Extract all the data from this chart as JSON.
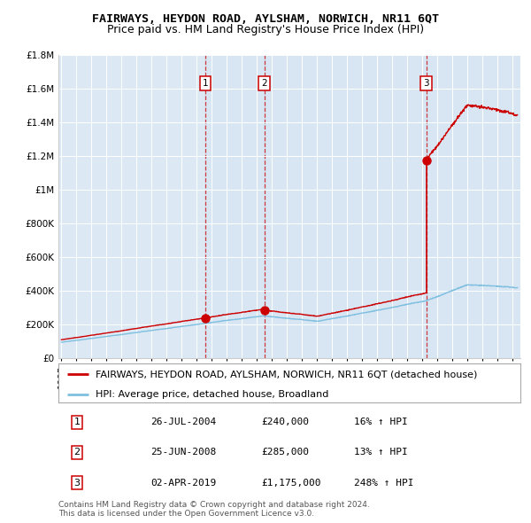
{
  "title": "FAIRWAYS, HEYDON ROAD, AYLSHAM, NORWICH, NR11 6QT",
  "subtitle": "Price paid vs. HM Land Registry's House Price Index (HPI)",
  "background_color": "#ffffff",
  "plot_bg_color": "#dce9f5",
  "grid_color": "#ffffff",
  "ylim": [
    0,
    1800000
  ],
  "xlim_start": 1994.8,
  "xlim_end": 2025.5,
  "yticks": [
    0,
    200000,
    400000,
    600000,
    800000,
    1000000,
    1200000,
    1400000,
    1600000,
    1800000
  ],
  "ytick_labels": [
    "£0",
    "£200K",
    "£400K",
    "£600K",
    "£800K",
    "£1M",
    "£1.2M",
    "£1.4M",
    "£1.6M",
    "£1.8M"
  ],
  "sale_dates": [
    2004.5671,
    2008.4795,
    2019.2493
  ],
  "sale_prices": [
    240000,
    285000,
    1175000
  ],
  "sale_labels": [
    "1",
    "2",
    "3"
  ],
  "hpi_color": "#7fbfdf",
  "price_color": "#cc0000",
  "legend_label_price": "FAIRWAYS, HEYDON ROAD, AYLSHAM, NORWICH, NR11 6QT (detached house)",
  "legend_label_hpi": "HPI: Average price, detached house, Broadland",
  "table_rows": [
    [
      "1",
      "26-JUL-2004",
      "£240,000",
      "16% ↑ HPI"
    ],
    [
      "2",
      "25-JUN-2008",
      "£285,000",
      "13% ↑ HPI"
    ],
    [
      "3",
      "02-APR-2019",
      "£1,175,000",
      "248% ↑ HPI"
    ]
  ],
  "footnote": "Contains HM Land Registry data © Crown copyright and database right 2024.\nThis data is licensed under the Open Government Licence v3.0.",
  "title_fontsize": 9.5,
  "subtitle_fontsize": 9,
  "tick_fontsize": 7.5,
  "legend_fontsize": 8,
  "table_fontsize": 8,
  "footnote_fontsize": 6.5
}
